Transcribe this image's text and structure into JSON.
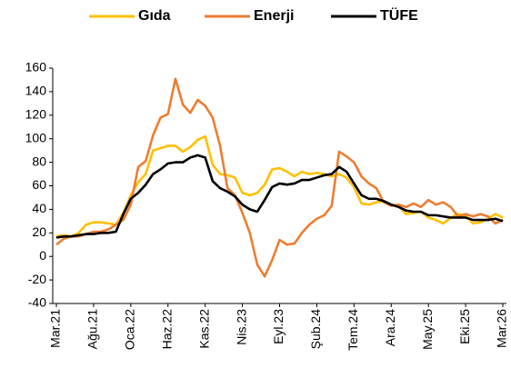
{
  "chart_data": {
    "type": "line",
    "categories": [
      "Mar.21",
      null,
      null,
      null,
      null,
      "Ağu.21",
      null,
      null,
      null,
      null,
      "Oca.22",
      null,
      null,
      null,
      null,
      "Haz.22",
      null,
      null,
      null,
      null,
      "Kas.22",
      null,
      null,
      null,
      null,
      "Nis.23",
      null,
      null,
      null,
      null,
      "Eyl.23",
      null,
      null,
      null,
      null,
      "Şub.24",
      null,
      null,
      null,
      null,
      "Tem.24",
      null,
      null,
      null,
      null,
      "Ara.24",
      null,
      null,
      null,
      null,
      "May.25",
      null,
      null,
      null,
      null,
      "Eki.25",
      null,
      null,
      null,
      null,
      "Mar.26"
    ],
    "series": [
      {
        "name": "Gıda",
        "color": "#ffc000",
        "values": [
          17,
          18,
          17,
          20,
          27,
          29,
          29,
          28,
          27,
          37,
          52,
          63,
          70,
          90,
          92,
          94,
          94,
          89,
          93,
          99,
          102,
          78,
          70,
          69,
          67,
          54,
          52,
          54,
          61,
          74,
          75,
          72,
          68,
          72,
          70,
          71,
          70,
          68,
          70,
          67,
          59,
          45,
          44,
          46,
          47,
          44,
          43,
          36,
          37,
          38,
          33,
          31,
          28,
          33,
          36,
          35,
          28,
          29,
          32,
          36,
          33
        ]
      },
      {
        "name": "Enerji",
        "color": "#ed7d31",
        "values": [
          10,
          15,
          17,
          17,
          19,
          21,
          21,
          23,
          27,
          31,
          44,
          76,
          81,
          103,
          118,
          121,
          151,
          129,
          122,
          133,
          128,
          118,
          94,
          58,
          52,
          37,
          20,
          -7,
          -17,
          -3,
          14,
          10,
          11,
          20,
          27,
          32,
          35,
          43,
          89,
          85,
          80,
          68,
          62,
          58,
          46,
          43,
          44,
          42,
          45,
          42,
          48,
          44,
          46,
          42,
          34,
          36,
          34,
          36,
          34,
          28,
          31
        ]
      },
      {
        "name": "TÜFE",
        "color": "#000000",
        "values": [
          16,
          17,
          17,
          18,
          19,
          19,
          20,
          20,
          21,
          36,
          49,
          54,
          61,
          70,
          74,
          79,
          80,
          80,
          84,
          86,
          84,
          64,
          58,
          55,
          51,
          44,
          40,
          38,
          48,
          59,
          62,
          61,
          62,
          65,
          65,
          67,
          69,
          70,
          76,
          72,
          62,
          52,
          49,
          49,
          47,
          44,
          42,
          39,
          38,
          38,
          35,
          35,
          34,
          33,
          33,
          33,
          31,
          31,
          31,
          32,
          30
        ]
      }
    ],
    "ylim": [
      -40,
      160
    ],
    "yticks": [
      -40,
      -20,
      0,
      20,
      40,
      60,
      80,
      100,
      120,
      140,
      160
    ],
    "grid": false,
    "legend": "top"
  }
}
